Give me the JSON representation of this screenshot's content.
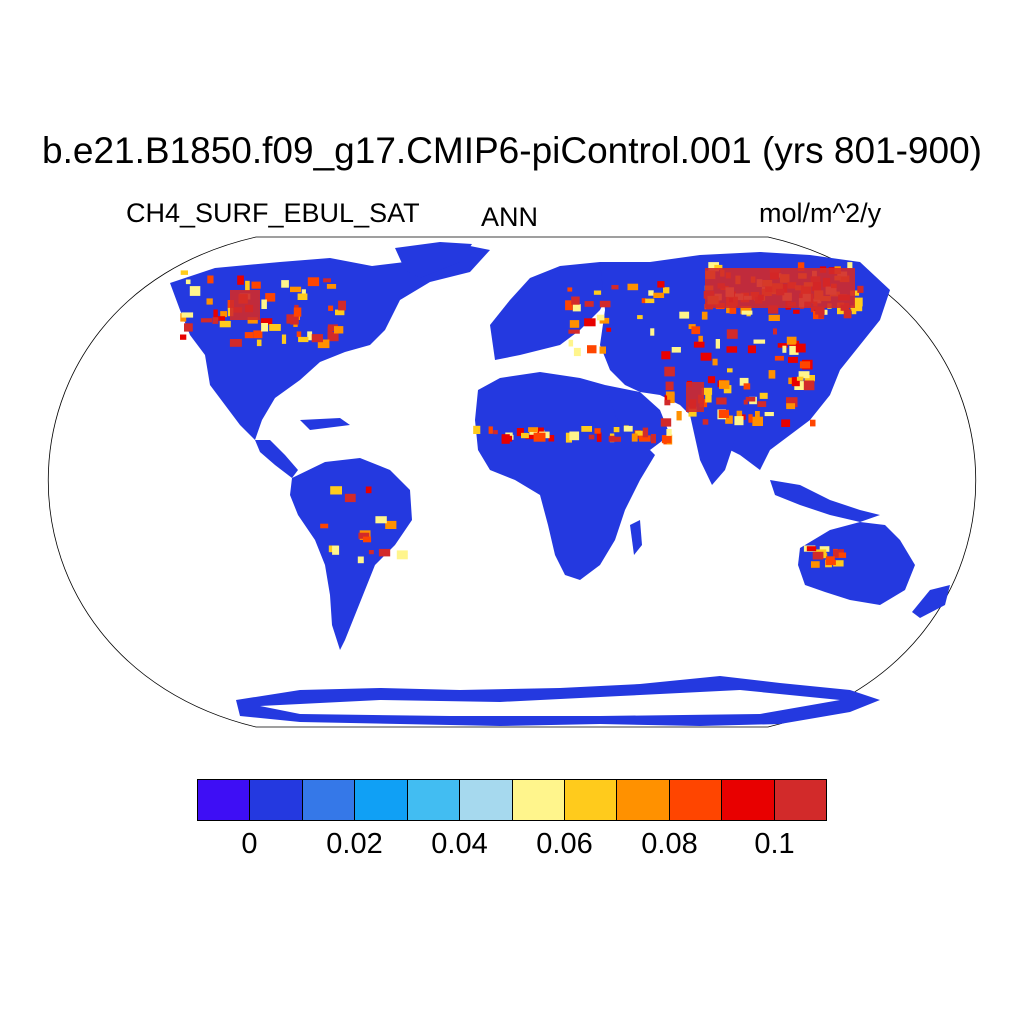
{
  "title": "b.e21.B1850.f09_g17.CMIP6-piControl.001 (yrs 801-900)",
  "left_label": "CH4_SURF_EBUL_SAT",
  "center_label": "ANN",
  "right_label": "mol/m^2/y",
  "map": {
    "projection": "Robinson",
    "background_field_color": "#2439e0",
    "ocean_color": "#ffffff",
    "hotspot_colors": [
      "#fff58c",
      "#ffcb1c",
      "#ff9100",
      "#ff4500",
      "#e80000",
      "#d22a2a"
    ]
  },
  "colorbar": {
    "colors": [
      "#3e0ef5",
      "#2439e0",
      "#3578e8",
      "#10a0f5",
      "#42bdf2",
      "#a6d9ee",
      "#fff58c",
      "#ffcb1c",
      "#ff9100",
      "#ff4500",
      "#e80000",
      "#d22a2a"
    ],
    "tick_labels": [
      "0",
      "0.02",
      "0.04",
      "0.06",
      "0.08",
      "0.1"
    ]
  }
}
